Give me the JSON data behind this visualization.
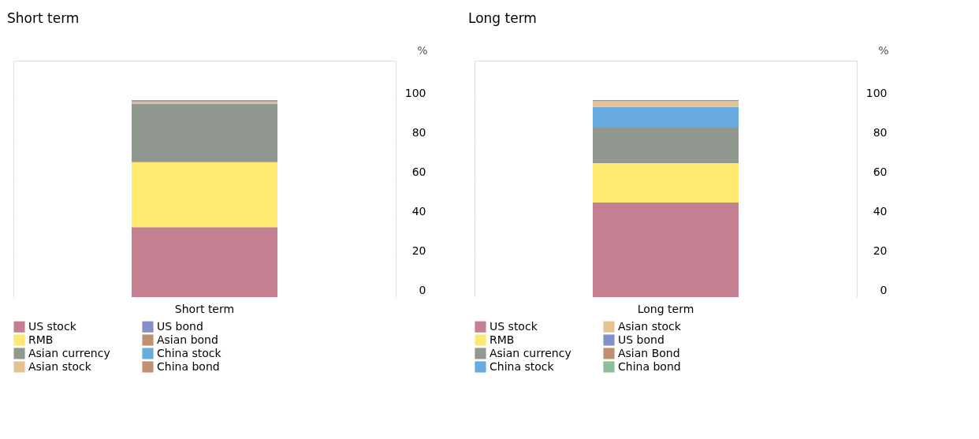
{
  "chart_data": [
    {
      "type": "bar",
      "title": "Short term",
      "ylabel": "%",
      "categories": [
        "Short term"
      ],
      "stacked": true,
      "ylim": [
        0,
        120
      ],
      "yticks": [
        0,
        20,
        40,
        60,
        80,
        100
      ],
      "grid": "y",
      "legend": "bottom",
      "series": [
        {
          "name": "US stock",
          "color": "#c48090",
          "values": [
            35.5
          ]
        },
        {
          "name": "RMB",
          "color": "#ffe970",
          "values": [
            33
          ]
        },
        {
          "name": "Asian currency",
          "color": "#909890",
          "values": [
            29.5
          ]
        },
        {
          "name": "Asian stock",
          "color": "#e3c392",
          "values": [
            1
          ]
        },
        {
          "name": "US bond",
          "color": "#8590c8",
          "values": [
            0.5
          ]
        },
        {
          "name": "Asian bond",
          "color": "#c09070",
          "values": [
            0.5
          ]
        },
        {
          "name": "China stock",
          "color": "#68abdf",
          "values": [
            0
          ]
        },
        {
          "name": "China bond",
          "color": "#c09070",
          "values": [
            0
          ]
        }
      ]
    },
    {
      "type": "bar",
      "title": "Long term",
      "ylabel": "%",
      "categories": [
        "Long term"
      ],
      "stacked": true,
      "ylim": [
        0,
        120
      ],
      "yticks": [
        0,
        20,
        40,
        60,
        80,
        100
      ],
      "grid": "y",
      "legend": "bottom",
      "series": [
        {
          "name": "US stock",
          "color": "#c48090",
          "values": [
            48
          ]
        },
        {
          "name": "RMB",
          "color": "#ffe970",
          "values": [
            20
          ]
        },
        {
          "name": "Asian currency",
          "color": "#909890",
          "values": [
            18
          ]
        },
        {
          "name": "China stock",
          "color": "#68abdf",
          "values": [
            10.5
          ]
        },
        {
          "name": "Asian stock",
          "color": "#e3c392",
          "values": [
            3
          ]
        },
        {
          "name": "US bond",
          "color": "#8590c8",
          "values": [
            0.5
          ]
        },
        {
          "name": "Asian Bond",
          "color": "#c09070",
          "values": [
            0
          ]
        },
        {
          "name": "China bond",
          "color": "#8fbc9a",
          "values": [
            0
          ]
        }
      ]
    }
  ]
}
